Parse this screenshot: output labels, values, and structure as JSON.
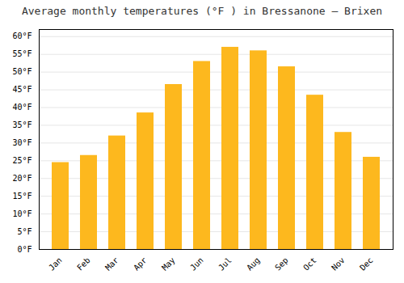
{
  "chart_data": {
    "type": "bar",
    "title": "Average monthly temperatures (°F ) in Bressanone – Brixen",
    "categories": [
      "Jan",
      "Feb",
      "Mar",
      "Apr",
      "May",
      "Jun",
      "Jul",
      "Aug",
      "Sep",
      "Oct",
      "Nov",
      "Dec"
    ],
    "values": [
      24.5,
      26.5,
      32.0,
      38.5,
      46.5,
      53.0,
      57.0,
      56.0,
      51.5,
      43.5,
      33.0,
      26.0
    ],
    "color": "#FDB81E",
    "ylim": [
      0,
      62
    ],
    "yticks": [
      {
        "value": 0,
        "label": "0°F"
      },
      {
        "value": 5,
        "label": "5°F"
      },
      {
        "value": 10,
        "label": "10°F"
      },
      {
        "value": 15,
        "label": "15°F"
      },
      {
        "value": 20,
        "label": "20°F"
      },
      {
        "value": 25,
        "label": "25°F"
      },
      {
        "value": 30,
        "label": "30°F"
      },
      {
        "value": 35,
        "label": "35°F"
      },
      {
        "value": 40,
        "label": "40°F"
      },
      {
        "value": 45,
        "label": "45°F"
      },
      {
        "value": 50,
        "label": "50°F"
      },
      {
        "value": 55,
        "label": "55°F"
      },
      {
        "value": 60,
        "label": "60°F"
      }
    ],
    "grid": true
  }
}
